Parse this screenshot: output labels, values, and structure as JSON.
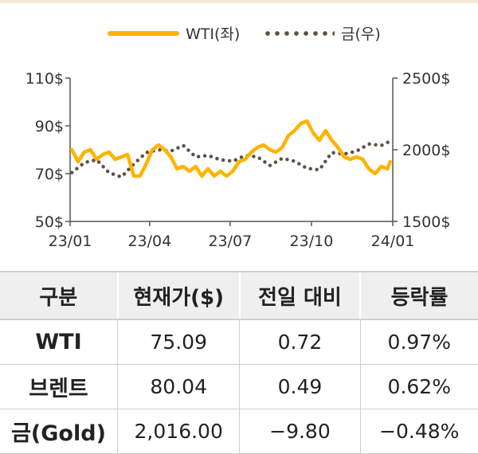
{
  "legend": {
    "wti": "WTI(좌)",
    "gold": "금(우)"
  },
  "chart_data": {
    "type": "line",
    "x_ticks": [
      "23/01",
      "23/04",
      "23/07",
      "23/10",
      "24/01"
    ],
    "y_left": {
      "ticks": [
        "110$",
        "90$",
        "70$",
        "50$"
      ],
      "range": [
        50,
        110
      ]
    },
    "y_right": {
      "ticks": [
        "2500$",
        "2000$",
        "1500$"
      ],
      "range": [
        1500,
        2500
      ]
    },
    "series": [
      {
        "name": "WTI(좌)",
        "axis": "left",
        "color": "#ffb300",
        "style": "solid",
        "x": [
          "2023-01-03",
          "2023-01-10",
          "2023-01-17",
          "2023-01-24",
          "2023-01-31",
          "2023-02-07",
          "2023-02-14",
          "2023-02-21",
          "2023-02-28",
          "2023-03-07",
          "2023-03-14",
          "2023-03-21",
          "2023-03-28",
          "2023-04-04",
          "2023-04-11",
          "2023-04-18",
          "2023-04-25",
          "2023-05-02",
          "2023-05-09",
          "2023-05-16",
          "2023-05-23",
          "2023-05-30",
          "2023-06-06",
          "2023-06-13",
          "2023-06-20",
          "2023-06-27",
          "2023-07-04",
          "2023-07-11",
          "2023-07-18",
          "2023-07-25",
          "2023-08-01",
          "2023-08-08",
          "2023-08-15",
          "2023-08-22",
          "2023-08-29",
          "2023-09-05",
          "2023-09-12",
          "2023-09-19",
          "2023-09-26",
          "2023-10-03",
          "2023-10-10",
          "2023-10-17",
          "2023-10-24",
          "2023-10-31",
          "2023-11-07",
          "2023-11-14",
          "2023-11-21",
          "2023-11-28",
          "2023-12-05",
          "2023-12-12",
          "2023-12-19",
          "2023-12-26",
          "2023-12-29"
        ],
        "values": [
          80,
          75,
          79,
          80,
          76,
          78,
          79,
          76,
          77,
          78,
          69,
          69,
          74,
          80,
          82,
          80,
          77,
          72,
          73,
          71,
          73,
          69,
          72,
          69,
          71,
          69,
          71,
          75,
          76,
          79,
          81,
          82,
          80,
          79,
          81,
          86,
          88,
          91,
          92,
          87,
          84,
          88,
          84,
          81,
          77,
          76,
          77,
          76,
          72,
          70,
          73,
          72,
          75
        ]
      },
      {
        "name": "금(우)",
        "axis": "right",
        "color": "#5a5246",
        "style": "dotted",
        "x": [
          "2023-01-03",
          "2023-01-17",
          "2023-01-31",
          "2023-02-14",
          "2023-02-28",
          "2023-03-14",
          "2023-03-28",
          "2023-04-11",
          "2023-04-25",
          "2023-05-09",
          "2023-05-23",
          "2023-06-06",
          "2023-06-20",
          "2023-07-04",
          "2023-07-18",
          "2023-08-01",
          "2023-08-15",
          "2023-08-29",
          "2023-09-12",
          "2023-09-26",
          "2023-10-10",
          "2023-10-24",
          "2023-11-07",
          "2023-11-21",
          "2023-12-05",
          "2023-12-19",
          "2023-12-29"
        ],
        "values": [
          1840,
          1910,
          1930,
          1840,
          1810,
          1900,
          1980,
          2000,
          1990,
          2030,
          1950,
          1960,
          1930,
          1920,
          1960,
          1950,
          1890,
          1940,
          1920,
          1870,
          1860,
          1980,
          1970,
          1990,
          2040,
          2030,
          2060
        ]
      }
    ]
  },
  "table": {
    "headers": [
      "구분",
      "현재가($)",
      "전일 대비",
      "등락률"
    ],
    "rows": [
      [
        "WTI",
        "75.09",
        "0.72",
        "0.97%"
      ],
      [
        "브렌트",
        "80.04",
        "0.49",
        "0.62%"
      ],
      [
        "금(Gold)",
        "2,016.00",
        "−9.80",
        "−0.48%"
      ]
    ]
  }
}
